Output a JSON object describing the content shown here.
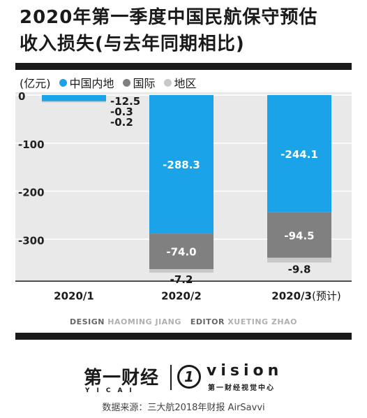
{
  "title_line1": "2020年第一季度中国民航保守预估",
  "title_line2": "收入损失(与去年同期相比)",
  "legend": {
    "unit": "(亿元)",
    "items": [
      {
        "label": "中国内地",
        "color": "#1aa3e8"
      },
      {
        "label": "国际",
        "color": "#808080"
      },
      {
        "label": "地区",
        "color": "#c8c8c8"
      }
    ]
  },
  "chart_data": {
    "type": "bar",
    "stacked": true,
    "categories": [
      "2020/1",
      "2020/2",
      "2020/3"
    ],
    "category_note": "(预计)",
    "series": [
      {
        "name": "中国内地",
        "color": "#1aa3e8",
        "values": [
          -12.5,
          -288.3,
          -244.1
        ],
        "labels": [
          "-12.5",
          "-288.3",
          "-244.1"
        ]
      },
      {
        "name": "国际",
        "color": "#808080",
        "values": [
          -0.3,
          -74.0,
          -94.5
        ],
        "labels": [
          "-0.3",
          "-74.0",
          "-94.5"
        ]
      },
      {
        "name": "地区",
        "color": "#c8c8c8",
        "values": [
          -0.2,
          -7.2,
          -9.8
        ],
        "labels": [
          "-0.2",
          "-7.2",
          "-9.8"
        ]
      }
    ],
    "yticks": [
      0,
      -100,
      -200,
      -300
    ],
    "ylim": [
      -380,
      0
    ],
    "grid": true
  },
  "credit": {
    "design_label": "DESIGN",
    "design_name": "HAOMING JIANG",
    "editor_label": "EDITOR",
    "editor_name": "XUETING ZHAO"
  },
  "logos": {
    "yicai": "第一财经",
    "yicai_sub": "YICAI",
    "vision_mark": "1",
    "vision": "vision",
    "vision_sub": "第一财经视觉中心"
  },
  "source": "数据来源：三大航2018年财报 AirSavvi"
}
